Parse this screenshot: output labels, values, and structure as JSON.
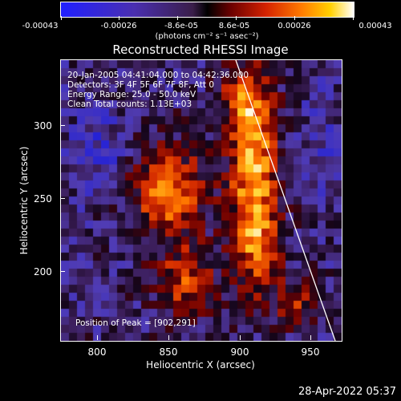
{
  "colorbar": {
    "tick_labels": [
      "-0.00043",
      "-0.00026",
      "-8.6e-05",
      "8.6e-05",
      "0.00026",
      "0.00043"
    ],
    "units": "(photons cm⁻² s⁻¹ asec⁻²)"
  },
  "title": "Reconstructed RHESSI Image",
  "info": {
    "time": "20-Jan-2005 04:41:04.000 to 04:42:36.000",
    "detectors": "Detectors: 3F 4F 5F 6F 7F 8F, Att 0",
    "energy": "Energy Range: 25.0 - 50.0 keV",
    "clean": "Clean     Total counts: 1.13E+03"
  },
  "peak": "Position of Peak = [902,291]",
  "x_axis": {
    "title": "Heliocentric X (arcsec)",
    "ticks": [
      "800",
      "850",
      "900",
      "950"
    ]
  },
  "y_axis": {
    "title": "Heliocentric Y (arcsec)",
    "ticks": [
      "300",
      "250",
      "200"
    ]
  },
  "timestamp": "28-Apr-2022 05:37"
}
